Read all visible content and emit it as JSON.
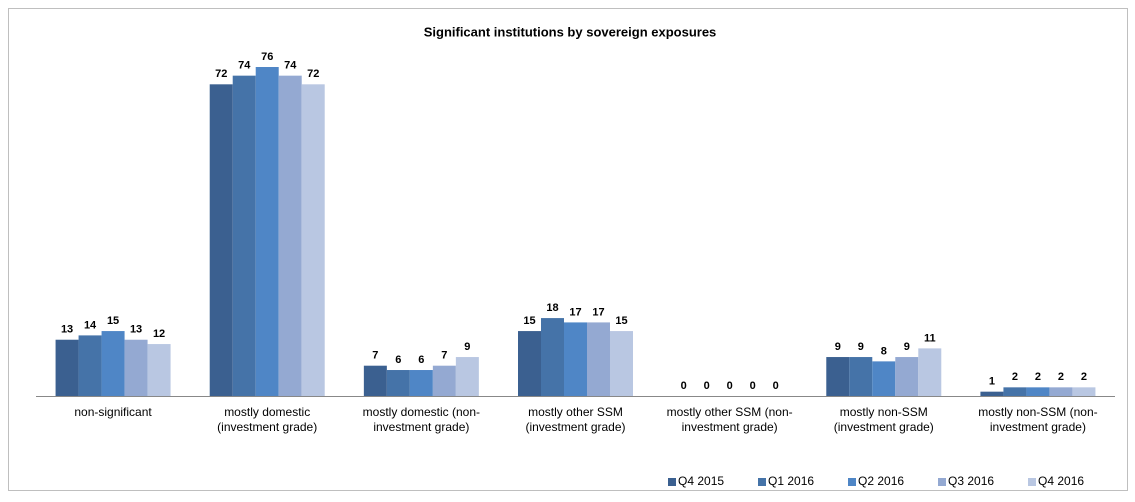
{
  "chart_data": {
    "type": "bar",
    "title": "Significant institutions by sovereign exposures",
    "categories": [
      "non-significant",
      "mostly domestic (investment grade)",
      "mostly domestic (non-investment grade)",
      "mostly other SSM (investment grade)",
      "mostly other SSM (non-investment grade)",
      "mostly non-SSM (investment grade)",
      "mostly non-SSM (non-investment grade)"
    ],
    "series": [
      {
        "name": "Q4 2015",
        "color": "#3b6090",
        "values": [
          13,
          72,
          7,
          15,
          0,
          9,
          1
        ]
      },
      {
        "name": "Q1 2016",
        "color": "#4573a8",
        "values": [
          14,
          74,
          6,
          18,
          0,
          9,
          2
        ]
      },
      {
        "name": "Q2 2016",
        "color": "#4f86c6",
        "values": [
          15,
          76,
          6,
          17,
          0,
          8,
          2
        ]
      },
      {
        "name": "Q3 2016",
        "color": "#94a9d2",
        "values": [
          13,
          74,
          7,
          17,
          0,
          9,
          2
        ]
      },
      {
        "name": "Q4 2016",
        "color": "#b9c7e2",
        "values": [
          12,
          72,
          9,
          15,
          0,
          11,
          2
        ]
      }
    ],
    "legend": "bottom-right"
  }
}
